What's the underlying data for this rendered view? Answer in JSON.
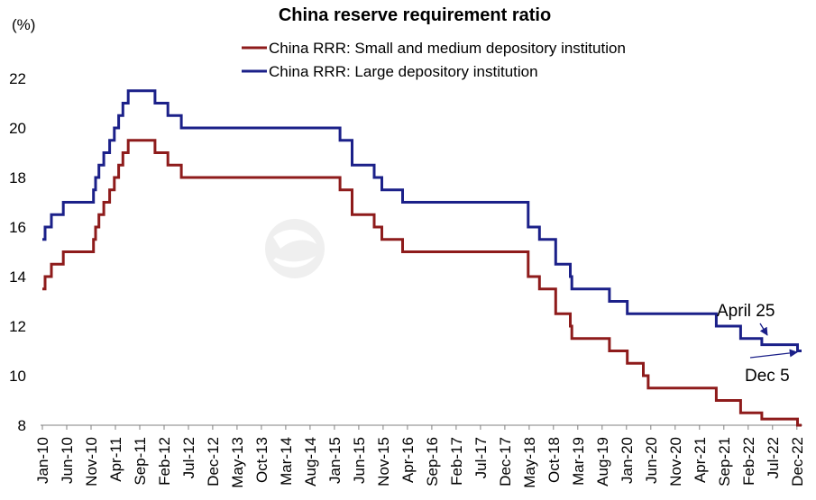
{
  "chart_data": {
    "type": "line",
    "line_style": "step",
    "title": "China reserve requirement ratio",
    "xlabel": "",
    "ylabel": "(%)",
    "x_range": [
      "2010-01-01",
      "2022-12-31"
    ],
    "ylim": [
      8,
      22
    ],
    "yticks": [
      8,
      10,
      12,
      14,
      16,
      18,
      20,
      22
    ],
    "xtick_labels": [
      "Jan-10",
      "Jun-10",
      "Nov-10",
      "Apr-11",
      "Sep-11",
      "Feb-12",
      "Jul-12",
      "Dec-12",
      "May-13",
      "Oct-13",
      "Mar-14",
      "Aug-14",
      "Jan-15",
      "Jun-15",
      "Nov-15",
      "Apr-16",
      "Sep-16",
      "Feb-17",
      "Jul-17",
      "Dec-17",
      "May-18",
      "Oct-18",
      "Mar-19",
      "Aug-19",
      "Jan-20",
      "Jun-20",
      "Nov-20",
      "Apr-21",
      "Sep-21",
      "Feb-22",
      "Jul-22",
      "Dec-22"
    ],
    "grid": false,
    "legend": "top",
    "series": [
      {
        "name": "China RRR: Small and medium depository institution",
        "color": "#8E1B1B",
        "points": [
          [
            "2010-01-01",
            13.5
          ],
          [
            "2010-01-18",
            14.0
          ],
          [
            "2010-02-25",
            14.5
          ],
          [
            "2010-05-10",
            15.0
          ],
          [
            "2010-11-16",
            15.5
          ],
          [
            "2010-11-29",
            16.0
          ],
          [
            "2010-12-20",
            16.5
          ],
          [
            "2011-01-20",
            17.0
          ],
          [
            "2011-02-24",
            17.5
          ],
          [
            "2011-03-25",
            18.0
          ],
          [
            "2011-04-21",
            18.5
          ],
          [
            "2011-05-18",
            19.0
          ],
          [
            "2011-06-20",
            19.5
          ],
          [
            "2011-12-05",
            19.0
          ],
          [
            "2012-02-24",
            18.5
          ],
          [
            "2012-05-18",
            18.0
          ],
          [
            "2015-02-05",
            17.5
          ],
          [
            "2015-04-20",
            16.5
          ],
          [
            "2015-09-06",
            16.0
          ],
          [
            "2015-10-24",
            15.5
          ],
          [
            "2016-03-01",
            15.0
          ],
          [
            "2018-04-25",
            14.0
          ],
          [
            "2018-07-05",
            13.5
          ],
          [
            "2018-10-15",
            12.5
          ],
          [
            "2019-01-15",
            12.0
          ],
          [
            "2019-01-25",
            11.5
          ],
          [
            "2019-09-16",
            11.0
          ],
          [
            "2020-01-06",
            10.5
          ],
          [
            "2020-04-15",
            10.0
          ],
          [
            "2020-05-15",
            9.5
          ],
          [
            "2021-07-15",
            9.0
          ],
          [
            "2021-12-15",
            8.5
          ],
          [
            "2022-04-25",
            8.25
          ],
          [
            "2022-12-05",
            8.0
          ]
        ]
      },
      {
        "name": "China RRR: Large depository institution",
        "color": "#1B2089",
        "points": [
          [
            "2010-01-01",
            15.5
          ],
          [
            "2010-01-18",
            16.0
          ],
          [
            "2010-02-25",
            16.5
          ],
          [
            "2010-05-10",
            17.0
          ],
          [
            "2010-11-16",
            17.5
          ],
          [
            "2010-11-29",
            18.0
          ],
          [
            "2010-12-20",
            18.5
          ],
          [
            "2011-01-20",
            19.0
          ],
          [
            "2011-02-24",
            19.5
          ],
          [
            "2011-03-25",
            20.0
          ],
          [
            "2011-04-21",
            20.5
          ],
          [
            "2011-05-18",
            21.0
          ],
          [
            "2011-06-20",
            21.5
          ],
          [
            "2011-12-05",
            21.0
          ],
          [
            "2012-02-24",
            20.5
          ],
          [
            "2012-05-18",
            20.0
          ],
          [
            "2015-02-05",
            19.5
          ],
          [
            "2015-04-20",
            18.5
          ],
          [
            "2015-09-06",
            18.0
          ],
          [
            "2015-10-24",
            17.5
          ],
          [
            "2016-03-01",
            17.0
          ],
          [
            "2018-04-25",
            16.0
          ],
          [
            "2018-07-05",
            15.5
          ],
          [
            "2018-10-15",
            14.5
          ],
          [
            "2019-01-15",
            14.0
          ],
          [
            "2019-01-25",
            13.5
          ],
          [
            "2019-09-16",
            13.0
          ],
          [
            "2020-01-06",
            12.5
          ],
          [
            "2021-07-15",
            12.0
          ],
          [
            "2021-12-15",
            11.5
          ],
          [
            "2022-04-25",
            11.25
          ],
          [
            "2022-12-05",
            11.0
          ]
        ]
      }
    ],
    "annotations": [
      "April 25",
      "Dec 5"
    ],
    "annotation_color": "#1B2089"
  },
  "watermark": "富途牛牛"
}
